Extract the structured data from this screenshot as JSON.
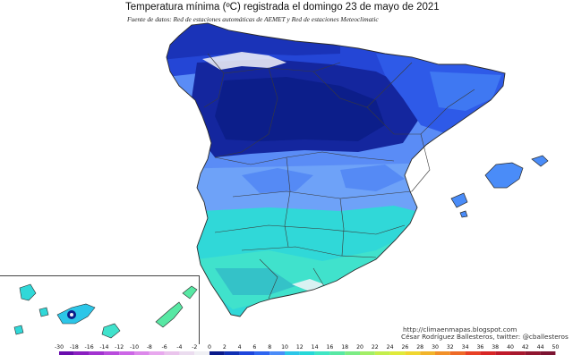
{
  "header": {
    "title": "Temperatura mínima (ºC) registrada el domingo 23 de mayo de 2021",
    "subtitle": "Fuente de datos: Red de estaciones automáticas de AEMET y Red de estaciones Meteoclimatic"
  },
  "credits": {
    "url": "http://climaenmapas.blogspot.com",
    "author": "César Rodríguez Ballesteros, twitter: @cballesteros"
  },
  "legend": {
    "ticks": [
      "-30",
      "-18",
      "-16",
      "-14",
      "-12",
      "-10",
      "-8",
      "-6",
      "-4",
      "-2",
      "0",
      "2",
      "4",
      "6",
      "8",
      "10",
      "12",
      "14",
      "16",
      "18",
      "20",
      "22",
      "24",
      "26",
      "28",
      "30",
      "32",
      "34",
      "36",
      "38",
      "40",
      "42",
      "44",
      "50"
    ],
    "colors": [
      "#6a0dad",
      "#8a1fc0",
      "#a233d0",
      "#b84cdc",
      "#cc66e6",
      "#dc88ea",
      "#e8a8ee",
      "#eac4ec",
      "#ebdcef",
      "#f0f0f4",
      "#0a1a8a",
      "#1030b4",
      "#1e46dc",
      "#2e66f0",
      "#4a8cf8",
      "#2cc6e8",
      "#26d8d8",
      "#40e6c4",
      "#58e8a4",
      "#7cec84",
      "#a2ee66",
      "#c4ee4c",
      "#e0ea3a",
      "#f0d630",
      "#f2b42a",
      "#f29028",
      "#ee6a26",
      "#e84024",
      "#d82626",
      "#c01a2a",
      "#a8182e",
      "#901630",
      "#7c1432"
    ]
  },
  "map": {
    "region": "Península Ibérica (España) e Islas Baleares",
    "inset": "Islas Canarias",
    "colors": {
      "sea": "#ffffff",
      "cantabrian_cold": "#0c1e9a",
      "meseta_norte": "#1a33b8",
      "north_east": "#2e5ae8",
      "central": "#5a8cf6",
      "south": "#30d8d8",
      "south_warm": "#40e2cc",
      "mountain_snow": "#f4f4f8",
      "borders": "#3a3a3a"
    }
  }
}
